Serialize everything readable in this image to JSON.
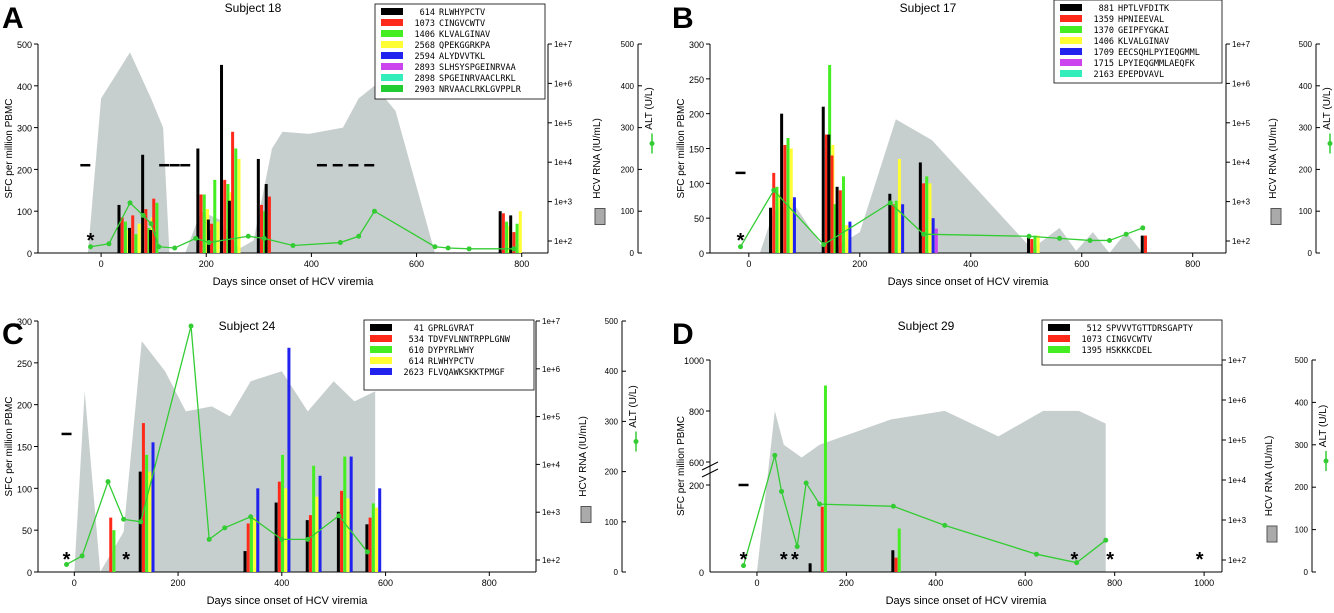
{
  "chart_data": [
    {
      "panel_letter": "A",
      "title": "Subject 18",
      "type": "bar",
      "xlabel": "Days since onset of HCV viremia",
      "ylabel": "SFC per million PBMC",
      "y2label": "HCV RNA (IU/mL)",
      "y3label": "ALT (U/L)",
      "xlim": [
        -120,
        850
      ],
      "ylim": [
        0,
        500
      ],
      "xticks": [
        0,
        200,
        400,
        600,
        800
      ],
      "yticks": [
        0,
        100,
        200,
        300,
        400,
        500
      ],
      "rna_ticks": [
        "1e+2",
        "1e+3",
        "1e+4",
        "1e+5",
        "1e+6",
        "1e+7"
      ],
      "alt_ylim": [
        0,
        500
      ],
      "alt_ticks": [
        0,
        100,
        200,
        300,
        400,
        500
      ],
      "legend": [
        {
          "id": "614",
          "seq": "RLWHYPCTV",
          "color": "#000000"
        },
        {
          "id": "1073",
          "seq": "CINGVCWTV",
          "color": "#ff2a1a"
        },
        {
          "id": "1406",
          "seq": "KLVALGINAV",
          "color": "#44ee22"
        },
        {
          "id": "2568",
          "seq": "QPEKGGRKPA",
          "color": "#ffff33"
        },
        {
          "id": "2594",
          "seq": "ALYDVVTKL",
          "color": "#2222ee"
        },
        {
          "id": "2893",
          "seq": "SLHSYSPGEINRVAA",
          "color": "#cc44ee"
        },
        {
          "id": "2898",
          "seq": "SPGEINRVAACLRKL",
          "color": "#33eebb"
        },
        {
          "id": "2903",
          "seq": "NRVAACLRKLGVPPLR",
          "color": "#22cc33"
        }
      ],
      "bar_groups": [
        {
          "x": 35,
          "values": [
            115,
            85,
            75,
            55
          ]
        },
        {
          "x": 55,
          "values": [
            60,
            90,
            45,
            70
          ]
        },
        {
          "x": 80,
          "values": [
            235,
            105,
            60,
            85,
            50
          ]
        },
        {
          "x": 95,
          "values": [
            55,
            130,
            120
          ]
        },
        {
          "x": 185,
          "values": [
            250,
            140,
            140,
            105,
            55
          ]
        },
        {
          "x": 205,
          "values": [
            80,
            70,
            175,
            75
          ]
        },
        {
          "x": 230,
          "values": [
            450,
            175,
            165,
            145
          ]
        },
        {
          "x": 245,
          "values": [
            125,
            290,
            250,
            225
          ]
        },
        {
          "x": 300,
          "values": [
            225,
            115,
            100,
            90
          ]
        },
        {
          "x": 315,
          "values": [
            165,
            135
          ]
        },
        {
          "x": 760,
          "values": [
            100,
            95,
            75,
            65
          ]
        },
        {
          "x": 780,
          "values": [
            90,
            50,
            70,
            100
          ]
        }
      ],
      "rna_area": [
        [
          -25,
          0
        ],
        [
          0,
          370
        ],
        [
          25,
          420
        ],
        [
          55,
          480
        ],
        [
          95,
          370
        ],
        [
          118,
          300
        ],
        [
          130,
          0
        ],
        [
          160,
          0
        ],
        [
          190,
          100
        ],
        [
          225,
          80
        ],
        [
          262,
          10
        ],
        [
          290,
          30
        ],
        [
          325,
          250
        ],
        [
          345,
          290
        ],
        [
          395,
          285
        ],
        [
          460,
          300
        ],
        [
          490,
          370
        ],
        [
          520,
          400
        ],
        [
          560,
          340
        ],
        [
          635,
          0
        ]
      ],
      "alt": [
        [
          -20,
          15
        ],
        [
          15,
          22
        ],
        [
          55,
          120
        ],
        [
          80,
          90
        ],
        [
          95,
          70
        ],
        [
          110,
          15
        ],
        [
          140,
          12
        ],
        [
          180,
          35
        ],
        [
          205,
          25
        ],
        [
          280,
          40
        ],
        [
          310,
          35
        ],
        [
          365,
          18
        ],
        [
          455,
          25
        ],
        [
          490,
          40
        ],
        [
          520,
          100
        ],
        [
          635,
          15
        ],
        [
          660,
          12
        ],
        [
          700,
          10
        ],
        [
          785,
          10
        ]
      ],
      "dashes_y": 210,
      "dashes_x": [
        -30,
        120,
        140,
        160,
        420,
        450,
        480,
        510
      ],
      "asterisks_x": [
        -20
      ]
    },
    {
      "panel_letter": "B",
      "title": "Subject 17",
      "type": "bar",
      "xlabel": "Days since onset of HCV viremia",
      "ylabel": "SFC per million PBMC",
      "y2label": "HCV RNA (IU/mL)",
      "y3label": "ALT (U/L)",
      "xlim": [
        -70,
        860
      ],
      "ylim": [
        0,
        300
      ],
      "xticks": [
        0,
        200,
        400,
        600,
        800
      ],
      "yticks": [
        0,
        50,
        100,
        150,
        200,
        250,
        300
      ],
      "rna_ticks": [
        "1e+2",
        "1e+3",
        "1e+4",
        "1e+5",
        "1e+6",
        "1e+7"
      ],
      "alt_ylim": [
        0,
        500
      ],
      "alt_ticks": [
        0,
        100,
        200,
        300,
        400,
        500
      ],
      "legend": [
        {
          "id": "881",
          "seq": "HPTLVFDITK",
          "color": "#000000"
        },
        {
          "id": "1359",
          "seq": "HPNIEEVAL",
          "color": "#ff2a1a"
        },
        {
          "id": "1370",
          "seq": "GEIPFYGKAI",
          "color": "#44ee22"
        },
        {
          "id": "1406",
          "seq": "KLVALGINAV",
          "color": "#ffff33"
        },
        {
          "id": "1709",
          "seq": "EECSQHLPYIEQGMML",
          "color": "#2222ee"
        },
        {
          "id": "1715",
          "seq": "LPYIEQGMMLAEQFK",
          "color": "#cc44ee"
        },
        {
          "id": "2163",
          "seq": "EPEPDVAVL",
          "color": "#33eebb"
        }
      ],
      "bar_groups": [
        {
          "x": 40,
          "values": [
            65,
            115,
            95,
            85
          ]
        },
        {
          "x": 60,
          "values": [
            200,
            155,
            165,
            150,
            80
          ]
        },
        {
          "x": 135,
          "values": [
            210,
            170,
            270,
            155
          ]
        },
        {
          "x": 145,
          "values": [
            170,
            140,
            70
          ]
        },
        {
          "x": 160,
          "values": [
            95,
            90,
            110,
            40,
            45
          ]
        },
        {
          "x": 255,
          "values": [
            85,
            70,
            75,
            135,
            70
          ]
        },
        {
          "x": 310,
          "values": [
            130,
            100,
            110,
            100,
            50,
            35
          ]
        },
        {
          "x": 505,
          "values": [
            25,
            20,
            25,
            25
          ]
        },
        {
          "x": 710,
          "values": [
            25,
            25
          ]
        }
      ],
      "rna_area": [
        [
          20,
          0
        ],
        [
          45,
          100
        ],
        [
          80,
          120
        ],
        [
          140,
          0
        ],
        [
          200,
          50
        ],
        [
          265,
          320
        ],
        [
          330,
          270
        ],
        [
          510,
          10
        ],
        [
          560,
          60
        ],
        [
          590,
          5
        ],
        [
          620,
          50
        ],
        [
          650,
          0
        ],
        [
          680,
          50
        ],
        [
          710,
          0
        ]
      ],
      "alt": [
        [
          -15,
          15
        ],
        [
          45,
          150
        ],
        [
          135,
          20
        ],
        [
          255,
          120
        ],
        [
          315,
          45
        ],
        [
          505,
          40
        ],
        [
          560,
          35
        ],
        [
          615,
          30
        ],
        [
          650,
          30
        ],
        [
          680,
          45
        ],
        [
          710,
          60
        ]
      ],
      "dashes_y": 115,
      "dashes_x": [
        -15
      ],
      "asterisks_x": [
        -15
      ]
    },
    {
      "panel_letter": "C",
      "title": "Subject 24",
      "type": "bar",
      "xlabel": "Days since onset of HCV viremia",
      "ylabel": "SFC per million PBMC",
      "y2label": "HCV RNA (IU/mL)",
      "y3label": "ALT (U/L)",
      "xlim": [
        -70,
        890
      ],
      "ylim": [
        0,
        300
      ],
      "xticks": [
        0,
        200,
        400,
        600,
        800
      ],
      "yticks": [
        0,
        50,
        100,
        150,
        200,
        250,
        300
      ],
      "rna_ticks": [
        "1e+2",
        "1e+3",
        "1e+4",
        "1e+5",
        "1e+6",
        "1e+7"
      ],
      "alt_ylim": [
        0,
        500
      ],
      "alt_ticks": [
        0,
        100,
        200,
        300,
        400,
        500
      ],
      "legend": [
        {
          "id": "41",
          "seq": "GPRLGVRAT",
          "color": "#000000"
        },
        {
          "id": "534",
          "seq": "TDVFVLNNTRPPLGNW",
          "color": "#ff2a1a"
        },
        {
          "id": "610",
          "seq": "DYPYRLWHY",
          "color": "#44ee22"
        },
        {
          "id": "614",
          "seq": "RLWHYPCTV",
          "color": "#ffff33"
        },
        {
          "id": "2623",
          "seq": "FLVQAWKSKKTPMGF",
          "color": "#2222ee"
        }
      ],
      "bar_groups": [
        {
          "x": 65,
          "values": [
            0,
            65,
            50
          ]
        },
        {
          "x": 128,
          "values": [
            120,
            178,
            140,
            120,
            155
          ]
        },
        {
          "x": 330,
          "values": [
            25,
            58,
            65,
            65,
            100
          ]
        },
        {
          "x": 390,
          "values": [
            83,
            108,
            140,
            100,
            268
          ]
        },
        {
          "x": 450,
          "values": [
            62,
            68,
            127,
            90,
            115
          ]
        },
        {
          "x": 510,
          "values": [
            72,
            97,
            138,
            88,
            138
          ]
        },
        {
          "x": 565,
          "values": [
            57,
            65,
            82,
            77,
            100
          ]
        }
      ],
      "rna_area": [
        [
          0,
          0
        ],
        [
          20,
          360
        ],
        [
          50,
          0
        ],
        [
          95,
          80
        ],
        [
          130,
          460
        ],
        [
          175,
          400
        ],
        [
          215,
          320
        ],
        [
          265,
          330
        ],
        [
          300,
          310
        ],
        [
          340,
          380
        ],
        [
          400,
          400
        ],
        [
          450,
          320
        ],
        [
          500,
          380
        ],
        [
          540,
          340
        ],
        [
          580,
          360
        ],
        [
          580,
          0
        ]
      ],
      "alt": [
        [
          -15,
          15
        ],
        [
          15,
          32
        ],
        [
          65,
          180
        ],
        [
          95,
          105
        ],
        [
          128,
          100
        ],
        [
          225,
          490
        ],
        [
          260,
          65
        ],
        [
          290,
          88
        ],
        [
          340,
          110
        ],
        [
          400,
          65
        ],
        [
          450,
          65
        ],
        [
          510,
          112
        ],
        [
          565,
          40
        ]
      ],
      "dashes_y": 165,
      "dashes_x": [
        -15
      ],
      "asterisks_x": [
        -15,
        100
      ]
    },
    {
      "panel_letter": "D",
      "title": "Subject 29",
      "type": "bar",
      "xlabel": "Days since onset of HCV viremia",
      "ylabel": "SFC per million PBMC",
      "y2label": "HCV RNA (IU/mL)",
      "y3label": "ALT (U/L)",
      "xlim": [
        -105,
        1040
      ],
      "ylim_label": "split axis 0–200 / 600–1000",
      "xticks": [
        0,
        200,
        400,
        600,
        800,
        1000
      ],
      "yticks": [
        200,
        600,
        800,
        1000
      ],
      "rna_ticks": [
        "1e+2",
        "1e+3",
        "1e+4",
        "1e+5",
        "1e+6",
        "1e+7"
      ],
      "alt_ylim": [
        0,
        500
      ],
      "alt_ticks": [
        0,
        100,
        200,
        300,
        400,
        500
      ],
      "legend": [
        {
          "id": "512",
          "seq": "SPVVVTGTTDRSGAPTY",
          "color": "#000000"
        },
        {
          "id": "1073",
          "seq": "CINGVCWTV",
          "color": "#ff2a1a"
        },
        {
          "id": "1395",
          "seq": "HSKKKCDEL",
          "color": "#44ee22"
        }
      ],
      "bar_groups": [
        {
          "x": 120,
          "values": [
            20,
            0,
            0
          ]
        },
        {
          "x": 140,
          "values": [
            0,
            150,
            900
          ]
        },
        {
          "x": 305,
          "values": [
            50,
            33,
            100
          ]
        }
      ],
      "rna_area": [
        [
          0,
          0
        ],
        [
          40,
          380
        ],
        [
          60,
          300
        ],
        [
          100,
          270
        ],
        [
          140,
          300
        ],
        [
          220,
          330
        ],
        [
          300,
          360
        ],
        [
          420,
          380
        ],
        [
          540,
          320
        ],
        [
          640,
          380
        ],
        [
          720,
          380
        ],
        [
          780,
          350
        ],
        [
          780,
          0
        ]
      ],
      "alt": [
        [
          -30,
          15
        ],
        [
          40,
          275
        ],
        [
          55,
          190
        ],
        [
          90,
          60
        ],
        [
          110,
          210
        ],
        [
          140,
          160
        ],
        [
          305,
          155
        ],
        [
          420,
          110
        ],
        [
          625,
          42
        ],
        [
          715,
          22
        ],
        [
          780,
          75
        ]
      ],
      "dashes_y": 200,
      "dashes_x": [
        -30
      ],
      "asterisks_x": [
        -30,
        60,
        85,
        710,
        790,
        990
      ]
    }
  ]
}
